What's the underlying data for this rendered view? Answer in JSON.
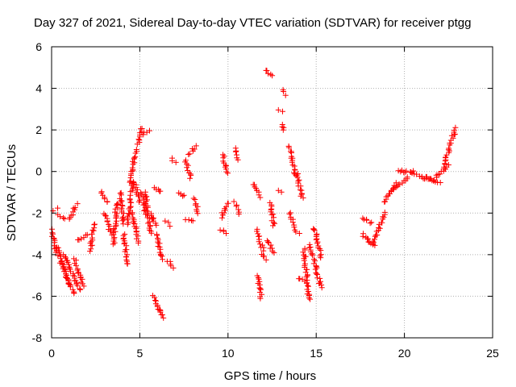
{
  "chart_data": {
    "type": "scatter",
    "title": "Day 327 of 2021, Sidereal Day-to-day VTEC variation (SDTVAR) for receiver ptgg",
    "xlabel": "GPS time / hours",
    "ylabel": "SDTVAR / TECUs",
    "xlim": [
      0,
      25
    ],
    "ylim": [
      -8,
      6
    ],
    "xticks": [
      "0",
      "5",
      "10",
      "15",
      "20",
      "25"
    ],
    "yticks": [
      "-8",
      "-6",
      "-4",
      "-2",
      "0",
      "2",
      "4",
      "6"
    ],
    "grid": true,
    "marker": "+",
    "color": "#ff0000",
    "series": [
      {
        "name": "SDTVAR",
        "segments": [
          {
            "x": [
              0.0,
              0.3
            ],
            "y": [
              -2.8,
              -4.0
            ]
          },
          {
            "x": [
              0.1,
              0.3
            ],
            "y": [
              -1.9,
              -1.8
            ]
          },
          {
            "x": [
              0.4,
              0.7
            ],
            "y": [
              -2.1,
              -2.3
            ]
          },
          {
            "x": [
              0.3,
              1.0
            ],
            "y": [
              -3.6,
              -5.4
            ]
          },
          {
            "x": [
              0.5,
              1.3
            ],
            "y": [
              -4.3,
              -5.9
            ]
          },
          {
            "x": [
              0.7,
              1.6
            ],
            "y": [
              -4.0,
              -5.7
            ]
          },
          {
            "x": [
              1.3,
              1.8
            ],
            "y": [
              -4.2,
              -5.5
            ]
          },
          {
            "x": [
              1.0,
              1.4
            ],
            "y": [
              -2.3,
              -1.6
            ]
          },
          {
            "x": [
              1.5,
              2.0
            ],
            "y": [
              -3.3,
              -3.0
            ]
          },
          {
            "x": [
              2.2,
              2.4
            ],
            "y": [
              -3.8,
              -2.5
            ]
          },
          {
            "x": [
              2.8,
              3.2
            ],
            "y": [
              -1.0,
              -1.5
            ]
          },
          {
            "x": [
              3.0,
              3.4
            ],
            "y": [
              -2.0,
              -3.0
            ]
          },
          {
            "x": [
              3.5,
              3.7
            ],
            "y": [
              -3.5,
              -1.5
            ]
          },
          {
            "x": [
              3.9,
              4.1
            ],
            "y": [
              -1.0,
              -2.5
            ]
          },
          {
            "x": [
              4.1,
              4.3
            ],
            "y": [
              -3.0,
              -4.5
            ]
          },
          {
            "x": [
              4.3,
              4.6
            ],
            "y": [
              -2.5,
              -0.5
            ]
          },
          {
            "x": [
              4.4,
              4.8
            ],
            "y": [
              -0.5,
              1.0
            ]
          },
          {
            "x": [
              4.6,
              4.9
            ],
            "y": [
              -2.0,
              -3.4
            ]
          },
          {
            "x": [
              4.7,
              5.0
            ],
            "y": [
              -0.5,
              -1.5
            ]
          },
          {
            "x": [
              4.9,
              5.1
            ],
            "y": [
              1.3,
              2.1
            ]
          },
          {
            "x": [
              5.2,
              5.5
            ],
            "y": [
              1.8,
              2.0
            ]
          },
          {
            "x": [
              5.1,
              5.3
            ],
            "y": [
              -1.0,
              -2.0
            ]
          },
          {
            "x": [
              5.3,
              5.6
            ],
            "y": [
              -1.0,
              -3.0
            ]
          },
          {
            "x": [
              5.6,
              5.9
            ],
            "y": [
              -2.0,
              -2.6
            ]
          },
          {
            "x": [
              5.8,
              6.2
            ],
            "y": [
              -0.8,
              -1.0
            ]
          },
          {
            "x": [
              5.9,
              6.3
            ],
            "y": [
              -3.0,
              -4.2
            ]
          },
          {
            "x": [
              5.8,
              6.1
            ],
            "y": [
              -6.0,
              -6.7
            ]
          },
          {
            "x": [
              6.1,
              6.4
            ],
            "y": [
              -6.6,
              -7.0
            ]
          },
          {
            "x": [
              6.5,
              6.7
            ],
            "y": [
              -2.4,
              -2.6
            ]
          },
          {
            "x": [
              6.6,
              6.9
            ],
            "y": [
              -4.3,
              -4.6
            ]
          },
          {
            "x": [
              6.8,
              7.0
            ],
            "y": [
              0.6,
              0.4
            ]
          },
          {
            "x": [
              7.2,
              7.5
            ],
            "y": [
              -1.0,
              -1.2
            ]
          },
          {
            "x": [
              7.6,
              7.9
            ],
            "y": [
              0.5,
              -0.3
            ]
          },
          {
            "x": [
              7.8,
              8.2
            ],
            "y": [
              0.8,
              1.2
            ]
          },
          {
            "x": [
              7.6,
              8.0
            ],
            "y": [
              -2.3,
              -2.4
            ]
          },
          {
            "x": [
              8.1,
              8.3
            ],
            "y": [
              -1.3,
              -2.0
            ]
          },
          {
            "x": [
              9.6,
              9.9
            ],
            "y": [
              -2.8,
              -3.0
            ]
          },
          {
            "x": [
              9.6,
              10.0
            ],
            "y": [
              -2.2,
              -1.5
            ]
          },
          {
            "x": [
              9.7,
              10.0
            ],
            "y": [
              0.8,
              -0.1
            ]
          },
          {
            "x": [
              10.4,
              10.6
            ],
            "y": [
              1.1,
              0.6
            ]
          },
          {
            "x": [
              10.4,
              10.6
            ],
            "y": [
              -1.5,
              -2.0
            ]
          },
          {
            "x": [
              11.4,
              11.8
            ],
            "y": [
              -0.6,
              -1.2
            ]
          },
          {
            "x": [
              11.6,
              12.0
            ],
            "y": [
              -2.8,
              -3.8
            ]
          },
          {
            "x": [
              11.9,
              12.2
            ],
            "y": [
              -4.0,
              -4.2
            ]
          },
          {
            "x": [
              11.7,
              11.9
            ],
            "y": [
              -5.0,
              -6.1
            ]
          },
          {
            "x": [
              12.1,
              12.5
            ],
            "y": [
              4.9,
              4.6
            ]
          },
          {
            "x": [
              12.2,
              12.6
            ],
            "y": [
              -3.3,
              -3.9
            ]
          },
          {
            "x": [
              12.4,
              12.6
            ],
            "y": [
              -1.5,
              -2.6
            ]
          },
          {
            "x": [
              12.8,
              13.0
            ],
            "y": [
              -0.9,
              -1.0
            ]
          },
          {
            "x": [
              12.9,
              13.1
            ],
            "y": [
              3.0,
              2.9
            ]
          },
          {
            "x": [
              13.1,
              13.3
            ],
            "y": [
              3.9,
              3.7
            ]
          },
          {
            "x": [
              13.1,
              13.2
            ],
            "y": [
              2.3,
              2.0
            ]
          },
          {
            "x": [
              13.5,
              13.8
            ],
            "y": [
              1.2,
              -0.2
            ]
          },
          {
            "x": [
              13.5,
              13.8
            ],
            "y": [
              -2.0,
              -2.8
            ]
          },
          {
            "x": [
              13.9,
              14.2
            ],
            "y": [
              -0.1,
              -1.3
            ]
          },
          {
            "x": [
              13.9,
              14.1
            ],
            "y": [
              -2.9,
              -3.0
            ]
          },
          {
            "x": [
              14.3,
              14.6
            ],
            "y": [
              -3.7,
              -6.2
            ]
          },
          {
            "x": [
              14.0,
              14.3
            ],
            "y": [
              -5.1,
              -5.3
            ]
          },
          {
            "x": [
              14.6,
              15.3
            ],
            "y": [
              -3.5,
              -5.6
            ]
          },
          {
            "x": [
              14.9,
              15.3
            ],
            "y": [
              -2.7,
              -4.2
            ]
          },
          {
            "x": [
              17.6,
              18.1
            ],
            "y": [
              -2.2,
              -2.5
            ]
          },
          {
            "x": [
              17.6,
              18.3
            ],
            "y": [
              -3.0,
              -3.6
            ]
          },
          {
            "x": [
              18.2,
              18.9
            ],
            "y": [
              -3.5,
              -2.0
            ]
          },
          {
            "x": [
              18.8,
              19.5
            ],
            "y": [
              -1.5,
              -0.6
            ]
          },
          {
            "x": [
              19.4,
              20.2
            ],
            "y": [
              -0.8,
              -0.3
            ]
          },
          {
            "x": [
              19.6,
              20.5
            ],
            "y": [
              0.0,
              0.0
            ]
          },
          {
            "x": [
              20.5,
              21.6
            ],
            "y": [
              -0.1,
              -0.4
            ]
          },
          {
            "x": [
              21.0,
              22.0
            ],
            "y": [
              -0.3,
              -0.5
            ]
          },
          {
            "x": [
              21.8,
              22.5
            ],
            "y": [
              -0.3,
              0.3
            ]
          },
          {
            "x": [
              22.2,
              22.9
            ],
            "y": [
              0.2,
              2.1
            ]
          }
        ]
      }
    ]
  }
}
